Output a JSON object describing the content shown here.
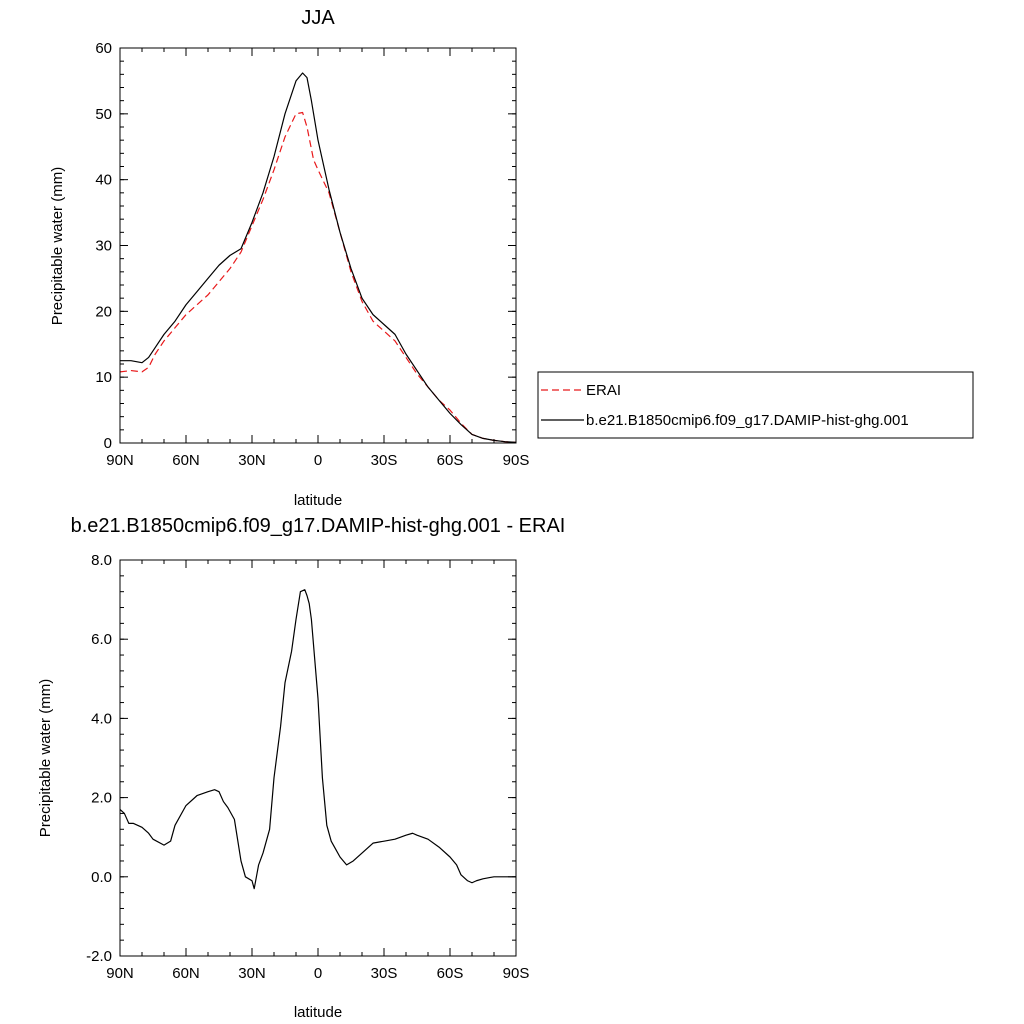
{
  "chart_data": [
    {
      "type": "line",
      "title": "JJA",
      "xlabel": "latitude",
      "ylabel": "Precipitable water (mm)",
      "xlim": [
        90,
        -90
      ],
      "ylim": [
        0,
        60
      ],
      "x_ticks": [
        {
          "value": 90,
          "label": "90N"
        },
        {
          "value": 60,
          "label": "60N"
        },
        {
          "value": 30,
          "label": "30N"
        },
        {
          "value": 0,
          "label": "0"
        },
        {
          "value": -30,
          "label": "30S"
        },
        {
          "value": -60,
          "label": "60S"
        },
        {
          "value": -90,
          "label": "90S"
        }
      ],
      "y_ticks": [
        {
          "value": 0,
          "label": "0"
        },
        {
          "value": 10,
          "label": "10"
        },
        {
          "value": 20,
          "label": "20"
        },
        {
          "value": 30,
          "label": "30"
        },
        {
          "value": 40,
          "label": "40"
        },
        {
          "value": 50,
          "label": "50"
        },
        {
          "value": 60,
          "label": "60"
        }
      ],
      "grid": false,
      "legend_position": "right",
      "series": [
        {
          "name": "ERAI",
          "color": "#e8191b",
          "dash": "dashed",
          "x": [
            90,
            85,
            80,
            77,
            74,
            70,
            65,
            60,
            55,
            50,
            45,
            40,
            35,
            30,
            25,
            20,
            15,
            10,
            7,
            5,
            2,
            0,
            -5,
            -10,
            -15,
            -20,
            -25,
            -30,
            -35,
            -40,
            -45,
            -50,
            -55,
            -60,
            -65,
            -70,
            -75,
            -80,
            -85,
            -90
          ],
          "y": [
            10.8,
            11.0,
            10.8,
            11.5,
            13.5,
            15.5,
            17.5,
            19.5,
            21.0,
            22.5,
            24.5,
            26.5,
            29.0,
            33.0,
            37.0,
            41.5,
            46.5,
            50.0,
            50.2,
            48.0,
            43.0,
            41.5,
            38.0,
            32.0,
            26.0,
            21.5,
            18.5,
            17.0,
            15.5,
            13.0,
            10.5,
            8.5,
            6.5,
            5.0,
            3.0,
            1.3,
            0.7,
            0.4,
            0.2,
            0.1
          ]
        },
        {
          "name": "b.e21.B1850cmip6.f09_g17.DAMIP-hist-ghg.001",
          "color": "#000000",
          "dash": "solid",
          "x": [
            90,
            85,
            80,
            77,
            74,
            70,
            65,
            60,
            55,
            50,
            45,
            40,
            35,
            30,
            25,
            20,
            15,
            10,
            7,
            5,
            3,
            0,
            -5,
            -10,
            -15,
            -20,
            -25,
            -30,
            -35,
            -40,
            -45,
            -50,
            -55,
            -60,
            -65,
            -70,
            -75,
            -80,
            -85,
            -90
          ],
          "y": [
            12.5,
            12.5,
            12.2,
            13.0,
            14.5,
            16.5,
            18.5,
            21.0,
            23.0,
            25.0,
            27.0,
            28.5,
            29.5,
            33.5,
            38.0,
            43.5,
            50.0,
            55.0,
            56.2,
            55.5,
            52.0,
            46.0,
            38.5,
            32.0,
            26.5,
            22.0,
            19.5,
            18.0,
            16.5,
            13.5,
            11.0,
            8.5,
            6.5,
            4.5,
            2.8,
            1.3,
            0.7,
            0.4,
            0.2,
            0.1
          ]
        }
      ]
    },
    {
      "type": "line",
      "title": "b.e21.B1850cmip6.f09_g17.DAMIP-hist-ghg.001 - ERAI",
      "xlabel": "latitude",
      "ylabel": "Precipitable water (mm)",
      "xlim": [
        90,
        -90
      ],
      "ylim": [
        -2.0,
        8.0
      ],
      "x_ticks": [
        {
          "value": 90,
          "label": "90N"
        },
        {
          "value": 60,
          "label": "60N"
        },
        {
          "value": 30,
          "label": "30N"
        },
        {
          "value": 0,
          "label": "0"
        },
        {
          "value": -30,
          "label": "30S"
        },
        {
          "value": -60,
          "label": "60S"
        },
        {
          "value": -90,
          "label": "90S"
        }
      ],
      "y_ticks": [
        {
          "value": -2.0,
          "label": "-2.0"
        },
        {
          "value": 0.0,
          "label": "0.0"
        },
        {
          "value": 2.0,
          "label": "2.0"
        },
        {
          "value": 4.0,
          "label": "4.0"
        },
        {
          "value": 6.0,
          "label": "6.0"
        },
        {
          "value": 8.0,
          "label": "8.0"
        }
      ],
      "grid": false,
      "series": [
        {
          "color": "#000000",
          "dash": "solid",
          "x": [
            90,
            88,
            86,
            84,
            80,
            77,
            75,
            70,
            67,
            65,
            60,
            55,
            50,
            47,
            45,
            43,
            41,
            38,
            35,
            33,
            30,
            29,
            28,
            27,
            25,
            22,
            20,
            17,
            15,
            12,
            10,
            8,
            6,
            5,
            4,
            3,
            0,
            -2,
            -4,
            -6,
            -8,
            -10,
            -13,
            -16,
            -20,
            -25,
            -30,
            -35,
            -40,
            -43,
            -45,
            -50,
            -55,
            -60,
            -63,
            -65,
            -68,
            -70,
            -72,
            -75,
            -78,
            -80,
            -85,
            -90
          ],
          "y": [
            1.7,
            1.6,
            1.35,
            1.35,
            1.25,
            1.1,
            0.95,
            0.8,
            0.9,
            1.3,
            1.8,
            2.05,
            2.15,
            2.2,
            2.15,
            1.9,
            1.75,
            1.45,
            0.4,
            0.0,
            -0.1,
            -0.3,
            0.0,
            0.3,
            0.6,
            1.2,
            2.5,
            3.8,
            4.9,
            5.7,
            6.5,
            7.2,
            7.25,
            7.1,
            6.9,
            6.5,
            4.5,
            2.5,
            1.3,
            0.9,
            0.7,
            0.5,
            0.3,
            0.4,
            0.6,
            0.85,
            0.9,
            0.95,
            1.05,
            1.1,
            1.05,
            0.95,
            0.75,
            0.5,
            0.3,
            0.05,
            -0.1,
            -0.15,
            -0.1,
            -0.05,
            -0.02,
            0.0,
            0.0,
            0.0
          ]
        }
      ]
    }
  ]
}
